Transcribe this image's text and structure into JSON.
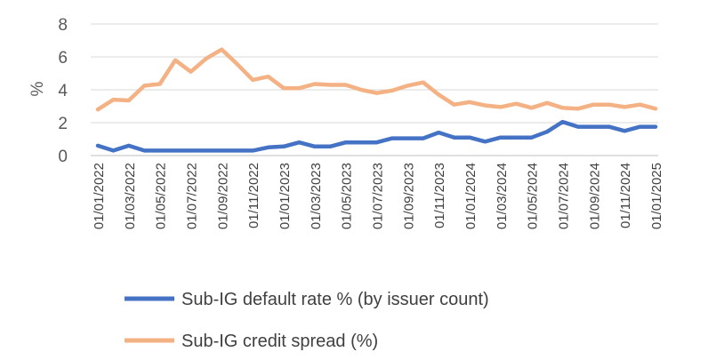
{
  "chart_data": {
    "type": "line",
    "title": "",
    "xlabel": "",
    "ylabel": "%",
    "ylim": [
      0,
      8
    ],
    "yticks": [
      "0",
      "2",
      "4",
      "6",
      "8"
    ],
    "grid": true,
    "legend_position": "bottom",
    "x": [
      "01/01/2022",
      "01/02/2022",
      "01/03/2022",
      "01/04/2022",
      "01/05/2022",
      "01/06/2022",
      "01/07/2022",
      "01/08/2022",
      "01/09/2022",
      "01/10/2022",
      "01/11/2022",
      "01/12/2022",
      "01/01/2023",
      "01/02/2023",
      "01/03/2023",
      "01/04/2023",
      "01/05/2023",
      "01/06/2023",
      "01/07/2023",
      "01/08/2023",
      "01/09/2023",
      "01/10/2023",
      "01/11/2023",
      "01/12/2023",
      "01/01/2024",
      "01/02/2024",
      "01/03/2024",
      "01/04/2024",
      "01/05/2024",
      "01/06/2024",
      "01/07/2024",
      "01/08/2024",
      "01/09/2024",
      "01/10/2024",
      "01/11/2024",
      "01/12/2024",
      "01/01/2025"
    ],
    "xtick_labels": [
      "01/01/2022",
      "01/03/2022",
      "01/05/2022",
      "01/07/2022",
      "01/09/2022",
      "01/11/2022",
      "01/01/2023",
      "01/03/2023",
      "01/05/2023",
      "01/07/2023",
      "01/09/2023",
      "01/11/2023",
      "01/01/2024",
      "01/03/2024",
      "01/05/2024",
      "01/07/2024",
      "01/09/2024",
      "01/11/2024",
      "01/01/2025"
    ],
    "series": [
      {
        "name": "Sub-IG default rate % (by issuer count)",
        "color": "#4472C4",
        "values": [
          0.6,
          0.3,
          0.6,
          0.3,
          0.3,
          0.3,
          0.3,
          0.3,
          0.3,
          0.3,
          0.3,
          0.5,
          0.55,
          0.8,
          0.55,
          0.55,
          0.8,
          0.8,
          0.8,
          1.05,
          1.05,
          1.05,
          1.4,
          1.1,
          1.1,
          0.85,
          1.1,
          1.1,
          1.1,
          1.45,
          2.05,
          1.75,
          1.75,
          1.75,
          1.5,
          1.75,
          1.75
        ]
      },
      {
        "name": "Sub-IG credit spread (%)",
        "color": "#F4B183",
        "values": [
          2.8,
          3.4,
          3.35,
          4.25,
          4.35,
          5.8,
          5.1,
          5.9,
          6.45,
          5.55,
          4.6,
          4.8,
          4.1,
          4.1,
          4.35,
          4.3,
          4.3,
          4.0,
          3.8,
          3.95,
          4.25,
          4.45,
          3.7,
          3.1,
          3.25,
          3.05,
          2.95,
          3.15,
          2.9,
          3.2,
          2.9,
          2.85,
          3.1,
          3.1,
          2.95,
          3.1,
          2.85
        ]
      }
    ]
  }
}
